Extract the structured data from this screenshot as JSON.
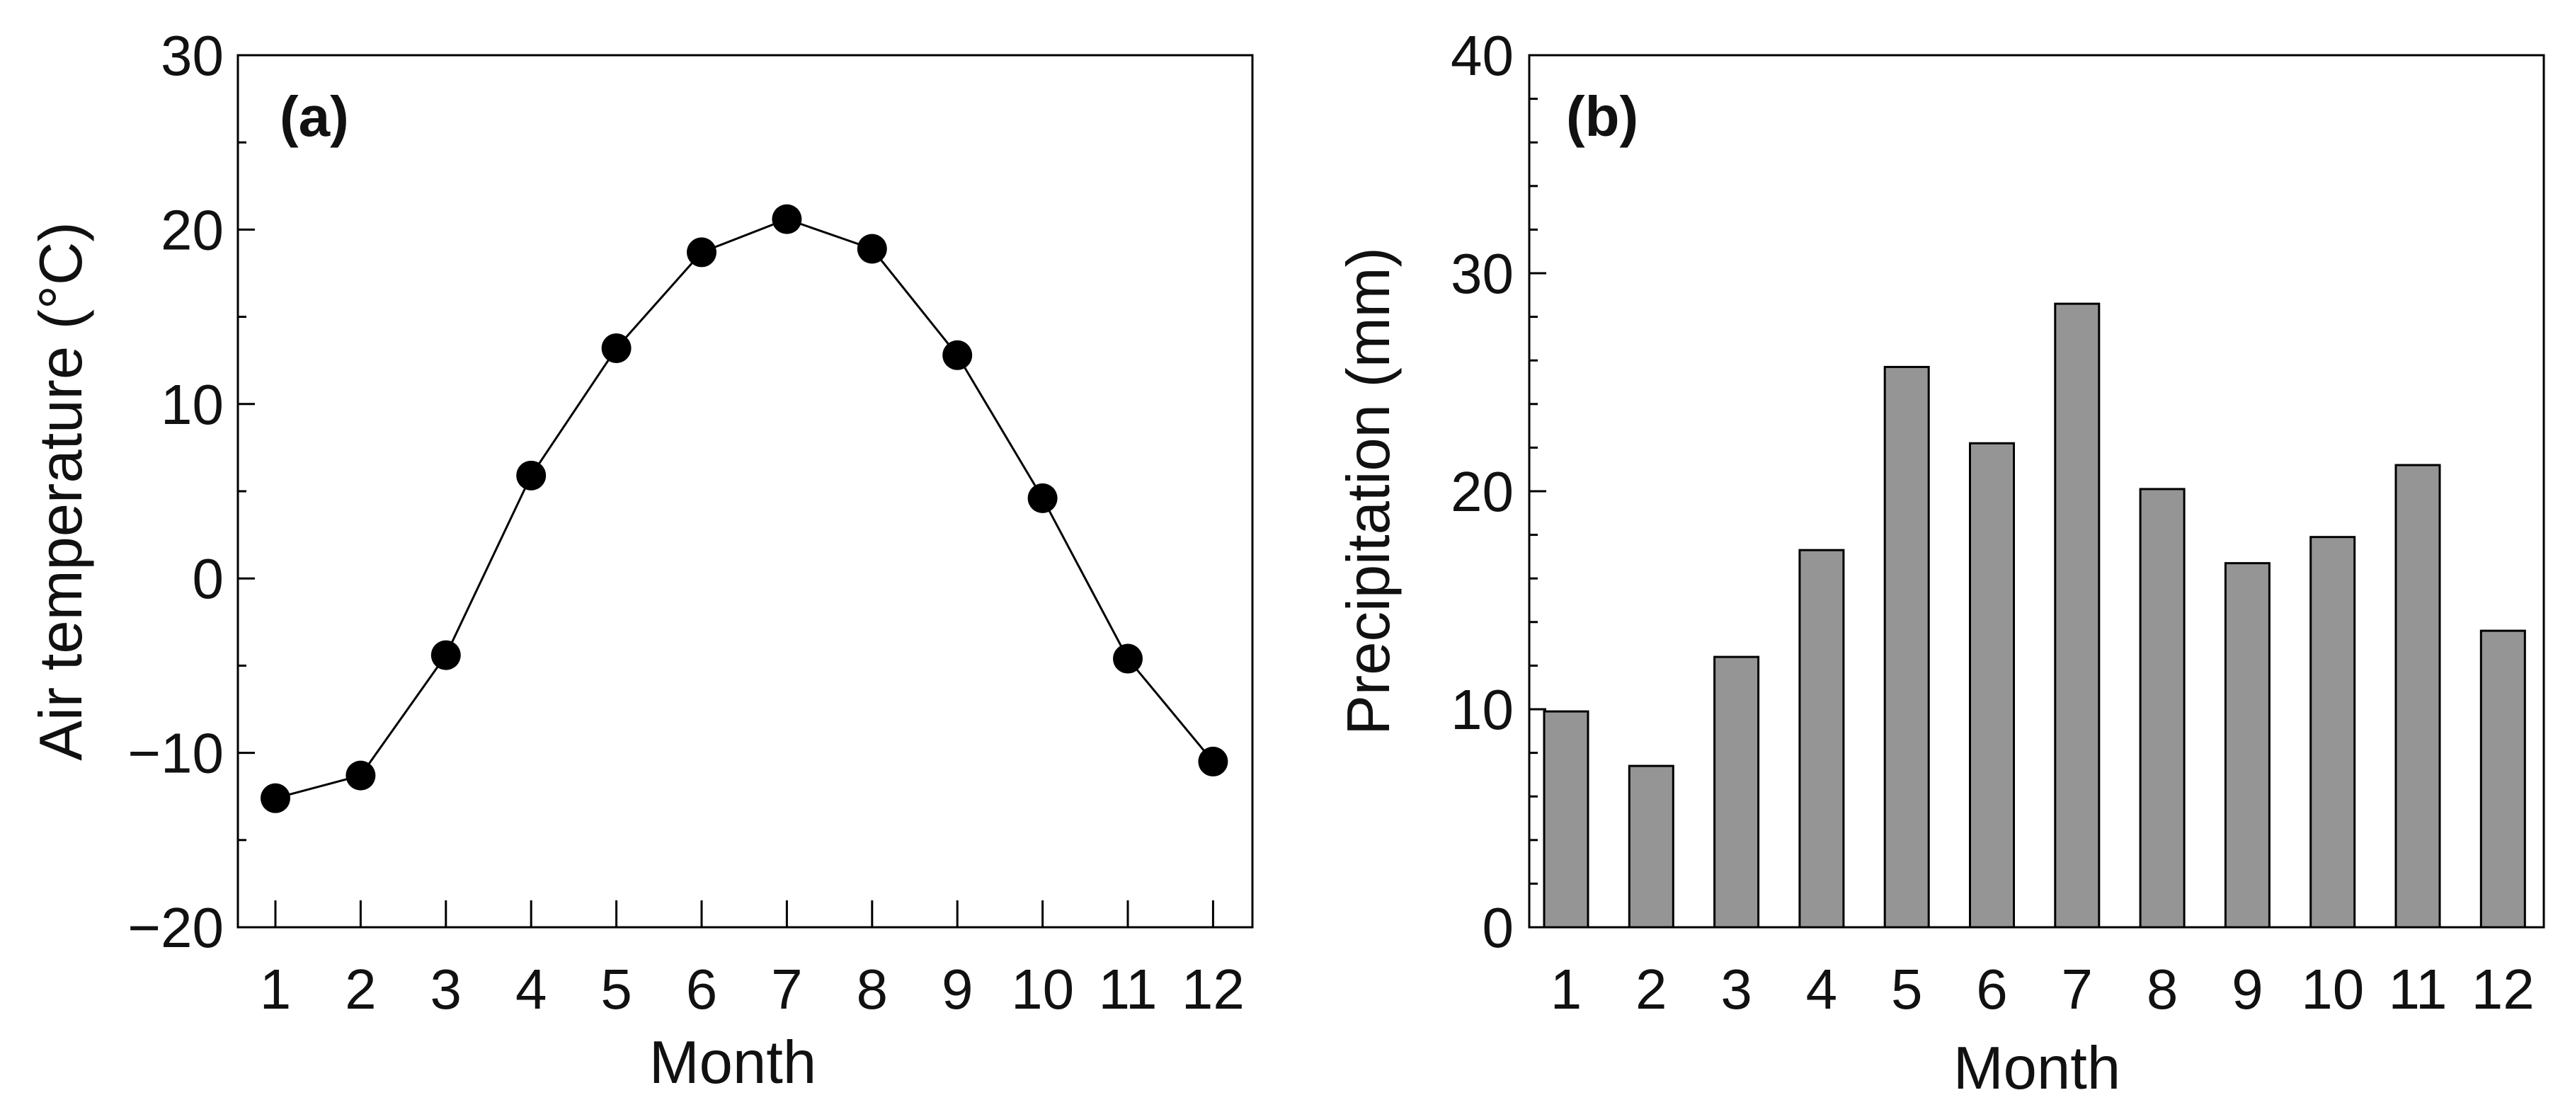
{
  "chart_data": [
    {
      "type": "line",
      "panel_label": "(a)",
      "xlabel": "Month",
      "ylabel": "Air temperature (°C)",
      "categories": [
        "1",
        "2",
        "3",
        "4",
        "5",
        "6",
        "7",
        "8",
        "9",
        "10",
        "11",
        "12"
      ],
      "values": [
        -12.6,
        -11.3,
        -4.4,
        5.9,
        13.2,
        18.7,
        20.6,
        18.9,
        12.8,
        4.6,
        -4.6,
        -10.5
      ],
      "ylim": [
        -20,
        30
      ],
      "yticks": [
        -20,
        -10,
        0,
        10,
        20,
        30
      ],
      "ytick_labels": [
        "−20",
        "−10",
        "0",
        "10",
        "20",
        "30"
      ],
      "marker": "filled-circle",
      "color": "#000000",
      "grid": false
    },
    {
      "type": "bar",
      "panel_label": "(b)",
      "xlabel": "Month",
      "ylabel": "Precipitation (mm)",
      "categories": [
        "1",
        "2",
        "3",
        "4",
        "5",
        "6",
        "7",
        "8",
        "9",
        "10",
        "11",
        "12"
      ],
      "values": [
        9.9,
        7.4,
        12.4,
        17.3,
        25.7,
        22.2,
        28.6,
        20.1,
        16.7,
        17.9,
        21.2,
        13.6
      ],
      "ylim": [
        0,
        40
      ],
      "yticks": [
        0,
        10,
        20,
        30,
        40
      ],
      "ytick_labels": [
        "0",
        "10",
        "20",
        "30",
        "40"
      ],
      "bar_color": "#959595",
      "edge_color": "#000000",
      "grid": false
    }
  ]
}
